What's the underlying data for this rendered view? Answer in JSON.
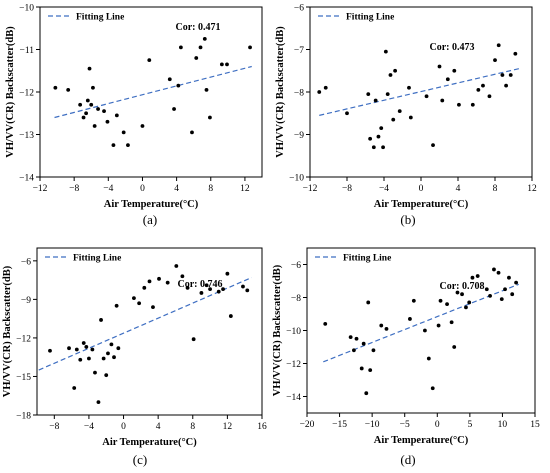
{
  "chart_data": [
    {
      "type": "scatter",
      "panel_label": "(a)",
      "legend": "Fitting Line",
      "annotation": "Cor: 0.471",
      "xlabel": "Air Temperature(°C)",
      "ylabel": "VH/VV(CR) Backscatter(dB)",
      "xlim": [
        -12,
        14
      ],
      "ylim": [
        -14,
        -10
      ],
      "xticks": [
        -12,
        -8,
        -4,
        0,
        4,
        8,
        12
      ],
      "yticks": [
        -14,
        -13,
        -12,
        -11,
        -10
      ],
      "fit_line": {
        "x": [
          -10.3,
          12.8
        ],
        "y": [
          -12.6,
          -11.4
        ]
      },
      "points": {
        "x": [
          -10.2,
          -8.7,
          -7.3,
          -6.9,
          -6.6,
          -6.4,
          -6.2,
          -6.0,
          -5.8,
          -5.6,
          -5.2,
          -4.5,
          -4.1,
          -3.4,
          -3.0,
          -2.2,
          -1.7,
          0.0,
          0.8,
          3.2,
          3.7,
          4.2,
          4.5,
          5.8,
          6.3,
          6.8,
          7.3,
          7.5,
          7.9,
          9.3,
          9.9,
          12.6
        ],
        "y": [
          -11.9,
          -11.95,
          -12.3,
          -12.6,
          -12.5,
          -12.2,
          -11.45,
          -12.3,
          -11.9,
          -12.8,
          -12.4,
          -12.45,
          -12.7,
          -13.25,
          -12.55,
          -12.95,
          -13.25,
          -12.8,
          -11.25,
          -11.7,
          -12.4,
          -11.85,
          -10.95,
          -12.95,
          -11.2,
          -10.95,
          -10.75,
          -11.95,
          -12.6,
          -11.35,
          -11.35,
          -10.95
        ]
      }
    },
    {
      "type": "scatter",
      "panel_label": "(b)",
      "legend": "Fitting Line",
      "annotation": "Cor: 0.473",
      "xlabel": "Air Temperature(°C)",
      "ylabel": "VH/VV(CR) Backscatter(dB)",
      "xlim": [
        -12,
        12
      ],
      "ylim": [
        -10,
        -6
      ],
      "xticks": [
        -12,
        -8,
        -4,
        0,
        4,
        8,
        12
      ],
      "yticks": [
        -10,
        -9,
        -8,
        -7,
        -6
      ],
      "fit_line": {
        "x": [
          -11.0,
          10.6
        ],
        "y": [
          -8.55,
          -7.45
        ]
      },
      "points": {
        "x": [
          -11.0,
          -10.3,
          -8.0,
          -5.7,
          -5.5,
          -5.1,
          -4.9,
          -4.6,
          -4.3,
          -4.1,
          -3.8,
          -3.6,
          -3.3,
          -3.0,
          -2.8,
          -2.3,
          -1.3,
          -1.1,
          0.6,
          1.3,
          2.0,
          2.3,
          2.9,
          3.6,
          4.1,
          5.6,
          6.2,
          6.7,
          7.4,
          8.0,
          8.4,
          8.8,
          9.2,
          9.7,
          10.2
        ],
        "y": [
          -8.0,
          -7.9,
          -8.5,
          -8.05,
          -9.1,
          -9.3,
          -8.2,
          -9.05,
          -8.85,
          -9.3,
          -7.05,
          -8.05,
          -7.6,
          -8.65,
          -7.5,
          -8.45,
          -7.9,
          -8.6,
          -8.1,
          -9.25,
          -7.4,
          -8.2,
          -7.7,
          -7.5,
          -8.3,
          -8.3,
          -7.95,
          -7.85,
          -8.1,
          -7.25,
          -6.9,
          -7.6,
          -7.85,
          -7.6,
          -7.1
        ]
      }
    },
    {
      "type": "scatter",
      "panel_label": "(c)",
      "legend": "Fitting Line",
      "annotation": "Cor: 0.746",
      "xlabel": "Air Temperature(°C)",
      "ylabel": "VH/VV(CR) Backscatter(dB)",
      "xlim": [
        -10,
        16
      ],
      "ylim": [
        -18,
        -5
      ],
      "xticks": [
        -8,
        -4,
        0,
        4,
        8,
        12,
        16
      ],
      "yticks": [
        -18,
        -15,
        -12,
        -9,
        -6
      ],
      "fit_line": {
        "x": [
          -9.8,
          14.8
        ],
        "y": [
          -14.5,
          -7.3
        ]
      },
      "points": {
        "x": [
          -8.5,
          -6.3,
          -5.7,
          -5.4,
          -5.0,
          -4.6,
          -4.3,
          -4.0,
          -3.6,
          -3.3,
          -2.9,
          -2.6,
          -2.3,
          -2.0,
          -1.8,
          -1.4,
          -1.1,
          -0.8,
          -0.6,
          1.2,
          1.8,
          2.4,
          3.0,
          3.4,
          4.1,
          5.1,
          6.1,
          6.8,
          7.4,
          8.1,
          9.0,
          9.6,
          10.0,
          11.0,
          11.5,
          12.0,
          12.4,
          13.8,
          14.3
        ],
        "y": [
          -13.0,
          -12.8,
          -15.9,
          -12.9,
          -13.7,
          -12.4,
          -12.7,
          -13.6,
          -12.9,
          -14.7,
          -17.0,
          -10.6,
          -13.6,
          -14.9,
          -13.2,
          -12.5,
          -13.5,
          -9.5,
          -12.8,
          -8.9,
          -9.3,
          -8.1,
          -7.6,
          -9.6,
          -7.4,
          -7.7,
          -6.4,
          -7.2,
          -8.1,
          -12.1,
          -8.5,
          -7.9,
          -8.2,
          -8.4,
          -8.2,
          -7.0,
          -10.3,
          -8.0,
          -8.3
        ]
      }
    },
    {
      "type": "scatter",
      "panel_label": "(d)",
      "legend": "Fitting Line",
      "annotation": "Cor: 0.708",
      "xlabel": "Air Temperature(°C)",
      "ylabel": "VH/VV(CR) Backscatter(dB)",
      "xlim": [
        -20,
        15
      ],
      "ylim": [
        -15,
        -5
      ],
      "xticks": [
        -20,
        -15,
        -10,
        -5,
        0,
        5,
        10,
        15
      ],
      "yticks": [
        -14,
        -12,
        -10,
        -8,
        -6
      ],
      "fit_line": {
        "x": [
          -17.5,
          12.5
        ],
        "y": [
          -11.9,
          -7.2
        ]
      },
      "points": {
        "x": [
          -17.2,
          -13.3,
          -12.8,
          -12.4,
          -11.6,
          -11.3,
          -10.9,
          -10.6,
          -10.3,
          -9.8,
          -8.6,
          -7.8,
          -4.2,
          -3.6,
          -1.9,
          -1.3,
          -0.7,
          0.2,
          0.5,
          1.5,
          2.2,
          2.6,
          3.1,
          3.8,
          4.4,
          4.9,
          5.4,
          6.2,
          7.6,
          8.1,
          8.7,
          9.4,
          9.9,
          10.4,
          11.0,
          11.5,
          12.1
        ],
        "y": [
          -9.6,
          -10.4,
          -11.2,
          -10.5,
          -12.3,
          -10.8,
          -13.8,
          -8.3,
          -12.4,
          -11.2,
          -9.7,
          -9.9,
          -9.3,
          -8.2,
          -10.0,
          -11.7,
          -13.5,
          -9.7,
          -8.2,
          -8.4,
          -9.5,
          -11.0,
          -7.7,
          -7.8,
          -8.6,
          -8.3,
          -6.8,
          -6.7,
          -7.5,
          -7.9,
          -6.3,
          -6.5,
          -8.1,
          -7.5,
          -6.8,
          -7.8,
          -7.1
        ]
      }
    }
  ]
}
